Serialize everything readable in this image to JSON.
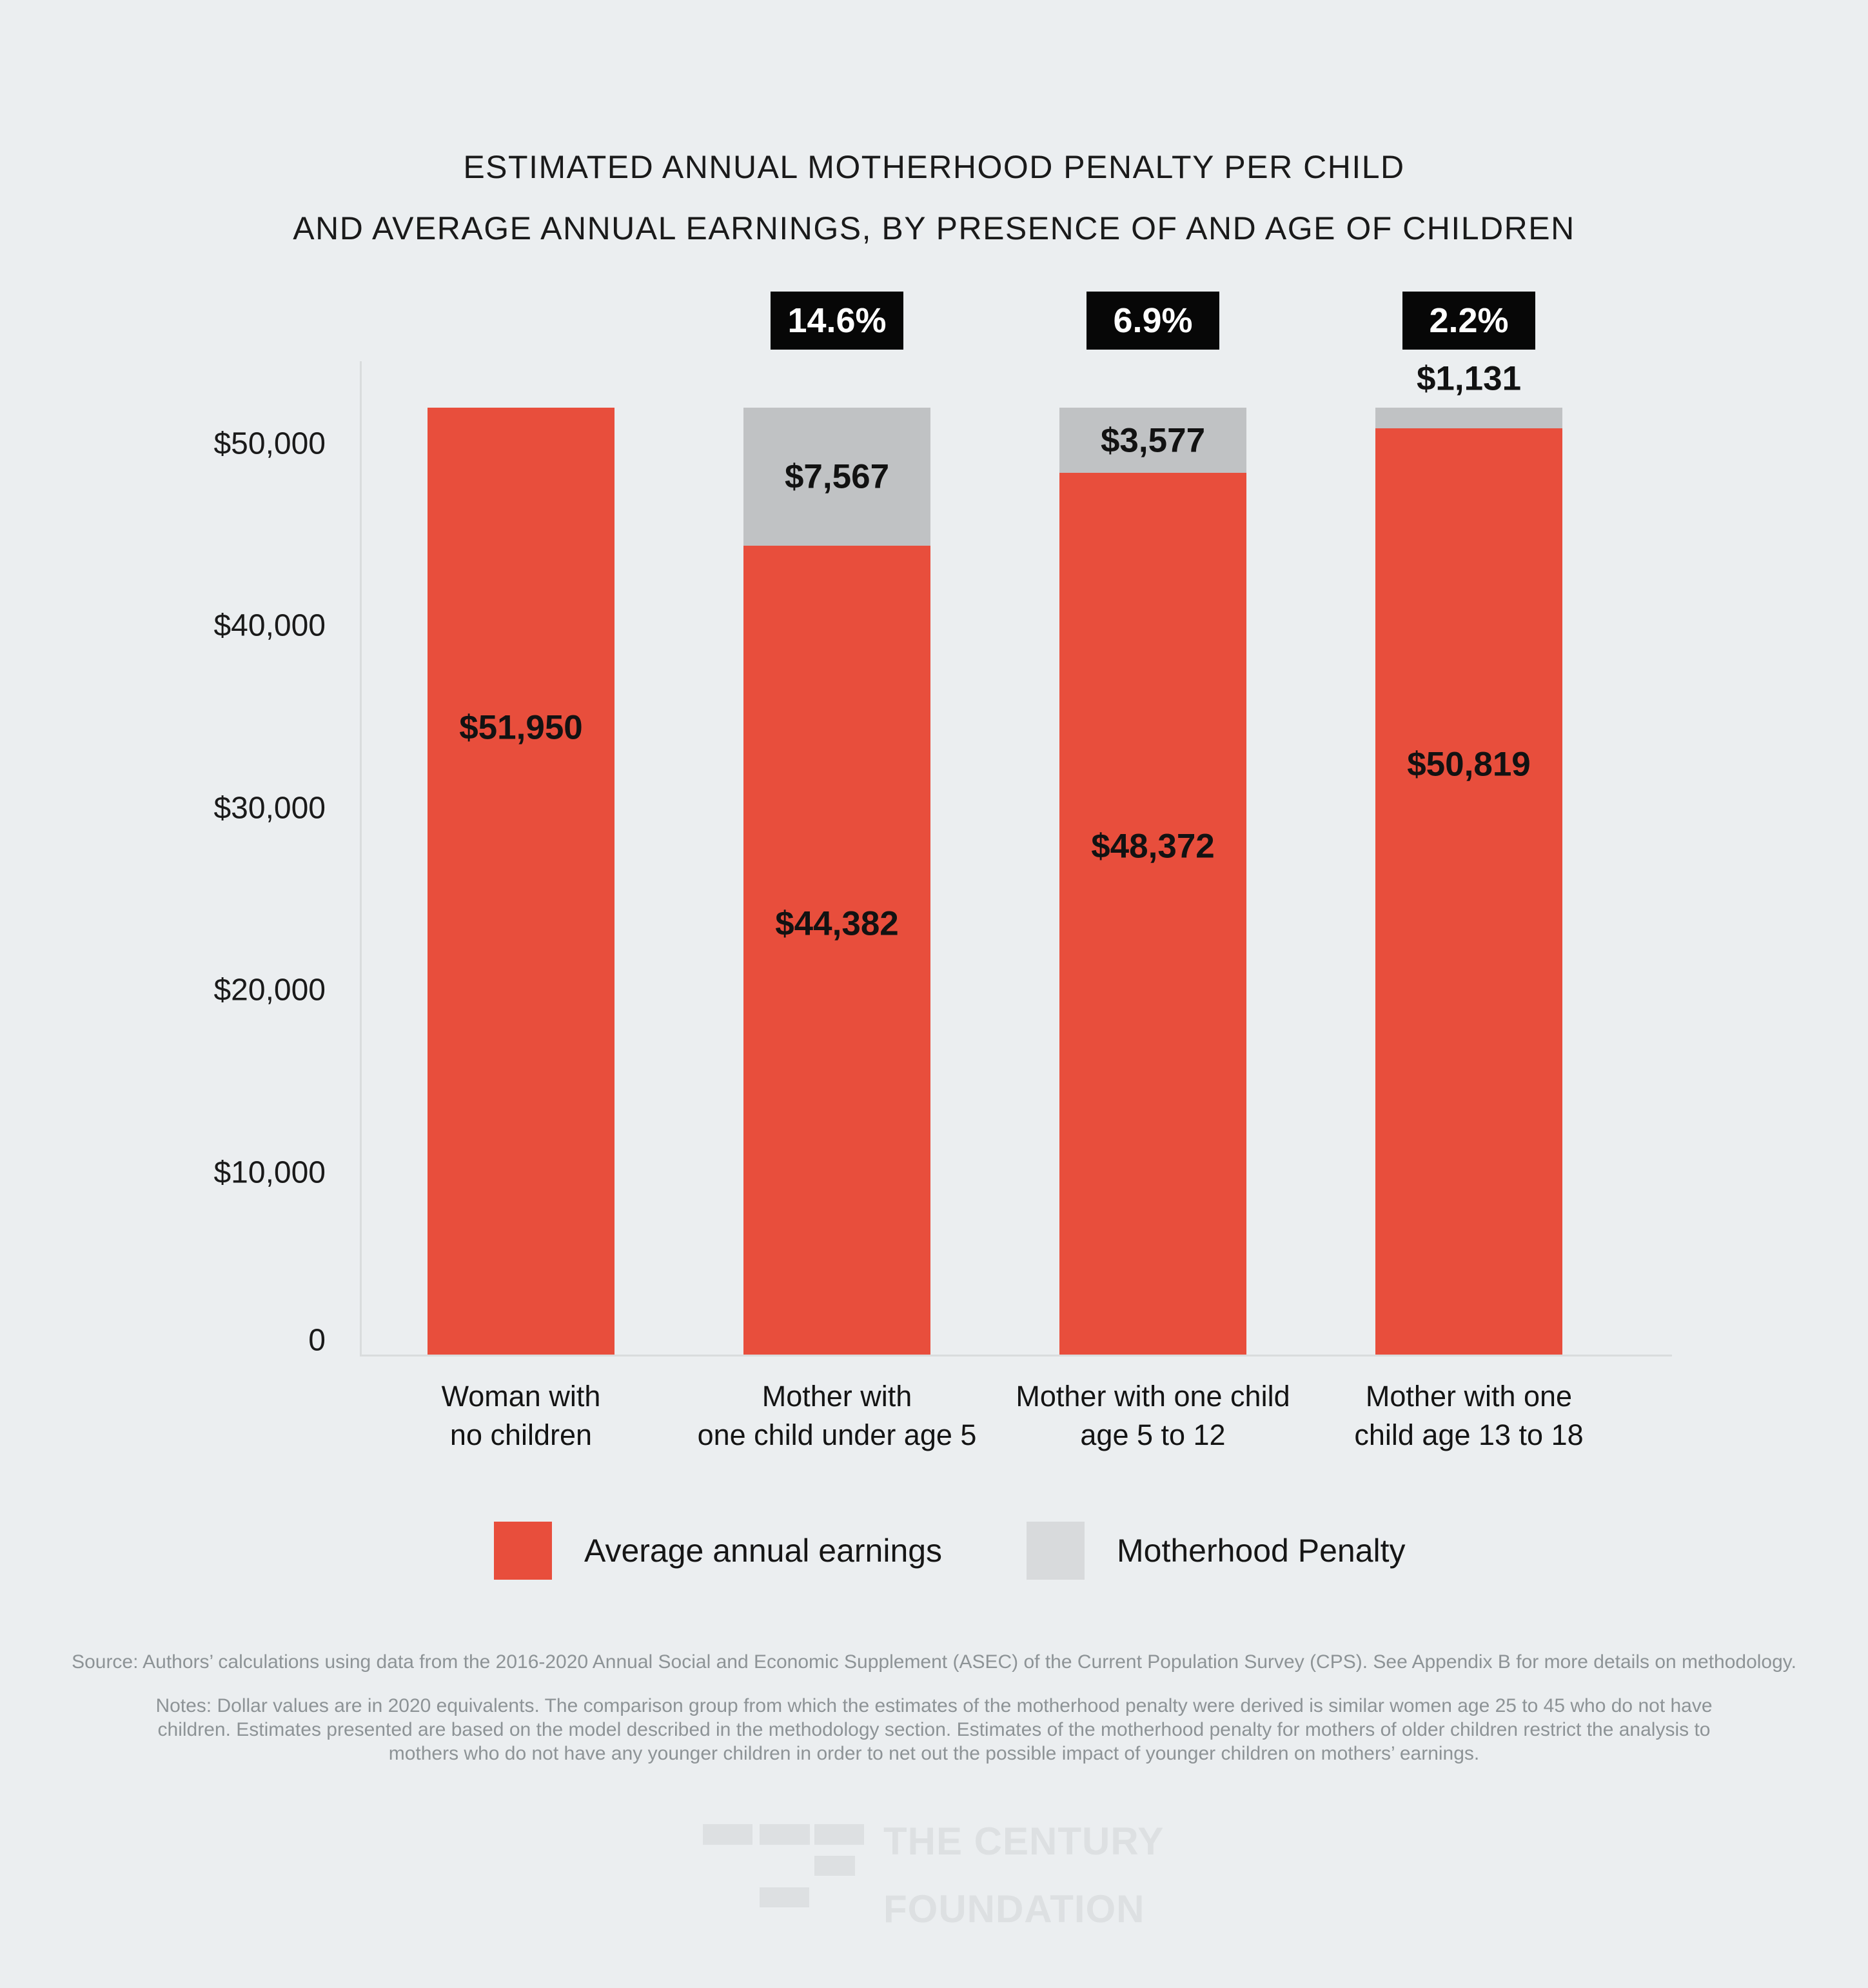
{
  "title": {
    "line1": "ESTIMATED ANNUAL MOTHERHOOD PENALTY PER CHILD",
    "line2": "AND AVERAGE ANNUAL EARNINGS, BY PRESENCE OF AND AGE OF CHILDREN"
  },
  "chart_data": {
    "type": "bar",
    "stacked": true,
    "categories": [
      "Woman with\nno children",
      "Mother with\none child under age 5",
      "Mother with one child\nage 5 to 12",
      "Mother with one\nchild age 13 to 18"
    ],
    "series": [
      {
        "name": "Average annual earnings",
        "color": "#e84e3c",
        "values": [
          51950,
          44382,
          48372,
          50819
        ],
        "labels": [
          "$51,950",
          "$44,382",
          "$48,372",
          "$50,819"
        ]
      },
      {
        "name": "Motherhood Penalty",
        "color": "#c0c2c4",
        "values": [
          0,
          7567,
          3577,
          1131
        ],
        "labels": [
          "",
          "$7,567",
          "$3,577",
          "$1,131"
        ]
      }
    ],
    "penalty_percent_labels": [
      "",
      "14.6%",
      "6.9%",
      "2.2%"
    ],
    "y_ticks": [
      {
        "value": 50000,
        "label": "$50,000"
      },
      {
        "value": 40000,
        "label": "$40,000"
      },
      {
        "value": 30000,
        "label": "$30,000"
      },
      {
        "value": 20000,
        "label": "$20,000"
      },
      {
        "value": 10000,
        "label": "$10,000"
      },
      {
        "value": 0,
        "label": "0"
      }
    ],
    "ylim": [
      0,
      52500
    ],
    "grid": false,
    "legend_position": "bottom"
  },
  "legend": {
    "items": [
      {
        "label": "Average annual earnings",
        "color": "#e84e3c"
      },
      {
        "label": "Motherhood Penalty",
        "color": "#d8dadc"
      }
    ]
  },
  "source": "Source: Authors’ calculations using data from the 2016-2020 Annual Social and Economic Supplement (ASEC) of the Current Population Survey (CPS). See Appendix B for more details on methodology.",
  "notes": "Notes: Dollar values are in 2020 equivalents. The comparison group from which the estimates of the motherhood penalty were derived is similar women age 25 to 45 who do not have children. Estimates presented are based on the model described in the methodology section. Estimates of the motherhood penalty for mothers of older children restrict the analysis to mothers who do not have any younger children in order to net out the possible impact of younger children on mothers’ earnings.",
  "logo": {
    "text_line1": "THE CENTURY",
    "text_line2": "FOUNDATION"
  }
}
